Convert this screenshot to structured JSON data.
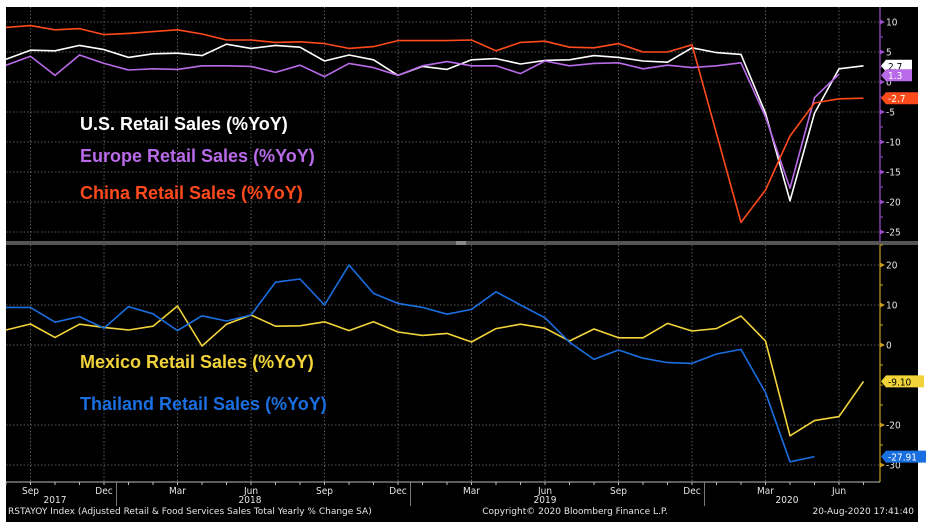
{
  "x_months": [
    "Aug 2017",
    "Sep 2017",
    "Oct 2017",
    "Nov 2017",
    "Dec 2017",
    "Jan 2018",
    "Feb 2018",
    "Mar 2018",
    "Apr 2018",
    "May 2018",
    "Jun 2018",
    "Jul 2018",
    "Aug 2018",
    "Sep 2018",
    "Oct 2018",
    "Nov 2018",
    "Dec 2018",
    "Jan 2019",
    "Feb 2019",
    "Mar 2019",
    "Apr 2019",
    "May 2019",
    "Jun 2019",
    "Jul 2019",
    "Aug 2019",
    "Sep 2019",
    "Oct 2019",
    "Nov 2019",
    "Dec 2019",
    "Jan 2020",
    "Feb 2020",
    "Mar 2020",
    "Apr 2020",
    "May 2020",
    "Jun 2020",
    "Jul 2020"
  ],
  "x_axis": {
    "month_ticks": [
      {
        "i": 1,
        "label": "Sep"
      },
      {
        "i": 4,
        "label": "Dec"
      },
      {
        "i": 7,
        "label": "Mar"
      },
      {
        "i": 10,
        "label": "Jun"
      },
      {
        "i": 13,
        "label": "Sep"
      },
      {
        "i": 16,
        "label": "Dec"
      },
      {
        "i": 19,
        "label": "Mar"
      },
      {
        "i": 22,
        "label": "Jun"
      },
      {
        "i": 25,
        "label": "Sep"
      },
      {
        "i": 28,
        "label": "Dec"
      },
      {
        "i": 31,
        "label": "Mar"
      },
      {
        "i": 34,
        "label": "Jun"
      }
    ],
    "year_labels": [
      {
        "i": 1,
        "label": "2017"
      },
      {
        "i": 9,
        "label": "2018"
      },
      {
        "i": 21,
        "label": "2019"
      },
      {
        "i": 31,
        "label": "2020"
      }
    ]
  },
  "chart_data": [
    {
      "type": "line",
      "panel": "top",
      "ylim": [
        -27,
        12
      ],
      "yticks": [
        10,
        5,
        0,
        -5,
        -10,
        -15,
        -20,
        -25
      ],
      "grid": true,
      "axis_color": "#9b4fd0",
      "series": [
        {
          "name": "U.S. Retail Sales (%YoY)",
          "color": "#ffffff",
          "last_label": "2.7",
          "last_value": 2.7,
          "values": [
            3.8,
            5.3,
            5.2,
            6.1,
            5.4,
            4.1,
            4.7,
            4.8,
            4.4,
            6.3,
            5.6,
            6.1,
            5.8,
            3.5,
            4.5,
            3.7,
            1.1,
            2.6,
            2.1,
            3.7,
            3.9,
            3.0,
            3.6,
            3.7,
            4.4,
            4.1,
            3.5,
            3.3,
            5.7,
            4.9,
            4.6,
            -5.2,
            -19.8,
            -5.2,
            2.2,
            2.7
          ]
        },
        {
          "name": "Europe Retail Sales (%YoY)",
          "color": "#b86ae8",
          "last_label": "1.3",
          "last_value": 1.3,
          "values": [
            2.8,
            4.3,
            1.1,
            4.5,
            3.1,
            2.0,
            2.2,
            2.1,
            2.7,
            2.7,
            2.6,
            1.6,
            2.8,
            0.9,
            3.1,
            2.4,
            1.1,
            2.7,
            3.4,
            2.7,
            2.7,
            1.4,
            3.5,
            2.7,
            3.1,
            3.2,
            2.2,
            2.8,
            2.4,
            2.7,
            3.2,
            -5.8,
            -17.7,
            -2.6,
            1.3,
            null
          ]
        },
        {
          "name": "China Retail Sales (%YoY)",
          "color": "#ff4a1c",
          "last_label": "-2.7",
          "last_value": -2.7,
          "values": [
            9.1,
            9.4,
            8.7,
            8.9,
            7.9,
            8.1,
            8.4,
            8.7,
            8.0,
            7.0,
            7.0,
            6.6,
            6.7,
            6.4,
            5.6,
            5.9,
            6.9,
            6.9,
            6.9,
            7.0,
            5.2,
            6.6,
            6.8,
            5.8,
            5.7,
            6.4,
            5.0,
            5.0,
            6.2,
            null,
            -23.4,
            -18.0,
            -9.0,
            -3.5,
            -2.8,
            -2.7
          ]
        }
      ]
    },
    {
      "type": "line",
      "panel": "bottom",
      "ylim": [
        -32,
        25
      ],
      "yticks": [
        20,
        10,
        0,
        -20,
        -30
      ],
      "grid": true,
      "axis_color": "#c8a020",
      "series": [
        {
          "name": "Mexico Retail Sales (%YoY)",
          "color": "#f2d43a",
          "last_label": "-9.10",
          "last_value": -9.1,
          "values": [
            3.75,
            5.25,
            1.9,
            5.2,
            4.4,
            3.75,
            4.7,
            9.75,
            -0.25,
            5.2,
            7.5,
            4.7,
            4.8,
            5.8,
            3.6,
            5.8,
            3.25,
            2.4,
            2.9,
            0.75,
            4.1,
            5.2,
            4.2,
            1.0,
            4.0,
            1.8,
            1.8,
            5.4,
            3.5,
            4.1,
            7.25,
            1.0,
            -22.7,
            -18.9,
            -17.9,
            -9.1
          ]
        },
        {
          "name": "Thailand Retail Sales (%YoY)",
          "color": "#1a6fe0",
          "last_label": "-27.91",
          "last_value": -27.91,
          "values": [
            9.4,
            9.4,
            5.7,
            7.1,
            4.2,
            9.6,
            7.8,
            3.6,
            7.3,
            6.0,
            7.5,
            15.7,
            16.5,
            10.0,
            20.0,
            12.9,
            10.4,
            9.4,
            7.7,
            8.9,
            13.3,
            10.0,
            6.8,
            0.7,
            -3.6,
            -1.25,
            -3.3,
            -4.4,
            -4.6,
            -2.25,
            -1.1,
            -11.9,
            -29.2,
            -27.9,
            null,
            null
          ]
        }
      ]
    }
  ],
  "footer": {
    "security": "RSTAYOY Index (Adjusted Retail & Food Services Sales Total Yearly % Change SA)",
    "copyright": "Copyright© 2020 Bloomberg Finance L.P.",
    "timestamp": "20-Aug-2020 17:41:40"
  }
}
